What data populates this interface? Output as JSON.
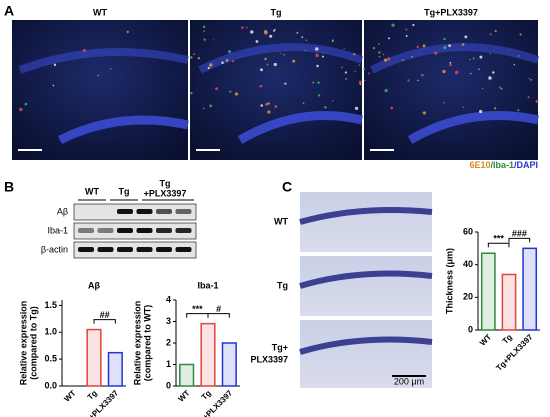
{
  "panels": {
    "a": {
      "letter": "A",
      "labels": [
        "WT",
        "Tg",
        "Tg+PLX3397"
      ],
      "legend": [
        "6E10",
        "/Iba-1",
        "/DAPI"
      ]
    },
    "b": {
      "letter": "B",
      "blot_cols": [
        "WT",
        "Tg",
        "Tg",
        "+PLX3397"
      ],
      "blot_rows": [
        "Aβ",
        "Iba-1",
        "β-actin"
      ]
    },
    "c": {
      "letter": "C",
      "labels": [
        "WT",
        "Tg",
        "Tg+",
        "PLX3397"
      ],
      "scale": "200 μm"
    }
  },
  "chart_data": [
    {
      "type": "bar",
      "title": "Aβ",
      "ylabel": [
        "Relative expression",
        "(compared to Tg)"
      ],
      "categories": [
        "WT",
        "Tg",
        "Tg+PLX3397"
      ],
      "values": [
        0,
        1.05,
        0.62
      ],
      "colors": [
        "#2e8b3a",
        "#e0453f",
        "#2433d6"
      ],
      "ylim": [
        0,
        1.6
      ],
      "yticks": [
        {
          "value": 0,
          "label": "0.0"
        },
        {
          "value": 0.5,
          "label": "0.5"
        },
        {
          "value": 1,
          "label": "1.0"
        },
        {
          "value": 1.5,
          "label": "1.5"
        }
      ],
      "annotations": [
        "##"
      ]
    },
    {
      "type": "bar",
      "title": "Iba-1",
      "ylabel": [
        "Relative expression",
        "(compared to WT)"
      ],
      "categories": [
        "WT",
        "Tg",
        "Tg+PLX3397"
      ],
      "values": [
        1.0,
        2.9,
        2.0
      ],
      "colors": [
        "#2e8b3a",
        "#e0453f",
        "#2433d6"
      ],
      "ylim": [
        0,
        4
      ],
      "yticks": [
        0,
        1,
        2,
        3,
        4
      ],
      "annotations": [
        "***",
        "#"
      ]
    },
    {
      "type": "bar",
      "ylabel": [
        "Thickness (μm)"
      ],
      "categories": [
        "WT",
        "Tg",
        "Tg+PLX3397"
      ],
      "values": [
        47,
        34,
        50
      ],
      "colors": [
        "#2e8b3a",
        "#e0453f",
        "#2433d6"
      ],
      "ylim": [
        0,
        60
      ],
      "yticks": [
        0,
        20,
        40,
        60
      ],
      "annotations": [
        "***",
        "###"
      ]
    }
  ]
}
